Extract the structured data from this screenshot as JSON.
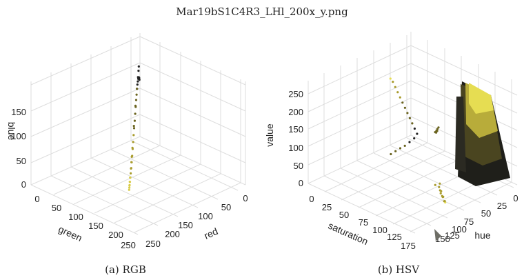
{
  "figure": {
    "title": "Mar19bS1C4R3_LHl_200x_y.png"
  },
  "chart_data": [
    {
      "type": "scatter",
      "projection": "3d",
      "caption": "(a) RGB",
      "xlabel": "red",
      "ylabel": "green",
      "zlabel": "blue",
      "xlim": [
        0,
        255
      ],
      "ylim": [
        0,
        255
      ],
      "zlim": [
        0,
        190
      ],
      "xticks": [
        "0",
        "50",
        "100",
        "150",
        "200",
        "250"
      ],
      "yticks": [
        "0",
        "50",
        "100",
        "150",
        "200",
        "250"
      ],
      "zticks": [
        "0",
        "50",
        "100",
        "150"
      ],
      "grid": true,
      "points": [
        [
          10,
          12,
          110
        ],
        [
          14,
          16,
          115
        ],
        [
          18,
          20,
          118
        ],
        [
          22,
          24,
          120
        ],
        [
          28,
          30,
          122
        ],
        [
          34,
          36,
          123
        ],
        [
          40,
          44,
          122
        ],
        [
          48,
          52,
          120
        ],
        [
          56,
          60,
          116
        ],
        [
          64,
          70,
          110
        ],
        [
          72,
          78,
          104
        ],
        [
          82,
          88,
          96
        ],
        [
          92,
          98,
          88
        ],
        [
          102,
          108,
          80
        ],
        [
          112,
          120,
          72
        ],
        [
          122,
          130,
          64
        ],
        [
          132,
          140,
          56
        ],
        [
          142,
          150,
          48
        ],
        [
          152,
          160,
          40
        ],
        [
          162,
          170,
          33
        ],
        [
          172,
          180,
          27
        ],
        [
          182,
          190,
          22
        ],
        [
          192,
          198,
          18
        ],
        [
          200,
          206,
          14
        ],
        [
          208,
          212,
          11
        ],
        [
          214,
          218,
          9
        ],
        [
          220,
          222,
          7
        ],
        [
          26,
          30,
          135
        ],
        [
          20,
          24,
          140
        ],
        [
          34,
          40,
          128
        ],
        [
          60,
          64,
          118
        ],
        [
          88,
          92,
          100
        ],
        [
          118,
          124,
          78
        ],
        [
          148,
          154,
          52
        ],
        [
          178,
          184,
          28
        ],
        [
          196,
          202,
          20
        ],
        [
          170,
          176,
          36
        ],
        [
          160,
          168,
          42
        ],
        [
          206,
          210,
          16
        ],
        [
          212,
          216,
          12
        ]
      ],
      "colors": [
        "#222222",
        "#6b6420",
        "#a99c2e",
        "#d9cc48"
      ]
    },
    {
      "type": "scatter",
      "projection": "3d",
      "caption": "(b) HSV",
      "xlabel": "hue",
      "ylabel": "saturation",
      "zlabel": "value",
      "xlim": [
        0,
        185
      ],
      "ylim": [
        0,
        185
      ],
      "zlim": [
        0,
        260
      ],
      "xticks": [
        "0",
        "25",
        "50",
        "75",
        "100",
        "125",
        "150"
      ],
      "yticks": [
        "0",
        "25",
        "50",
        "75",
        "100",
        "125",
        "150",
        "175"
      ],
      "zticks": [
        "0",
        "50",
        "100",
        "150",
        "200",
        "250"
      ],
      "grid": true,
      "points": [
        [
          30,
          30,
          40
        ],
        [
          32,
          40,
          60
        ],
        [
          34,
          50,
          80
        ],
        [
          36,
          60,
          100
        ],
        [
          38,
          70,
          120
        ],
        [
          40,
          80,
          140
        ],
        [
          42,
          90,
          160
        ],
        [
          44,
          100,
          180
        ],
        [
          46,
          110,
          200
        ],
        [
          48,
          120,
          220
        ],
        [
          50,
          130,
          240
        ],
        [
          52,
          140,
          255
        ],
        [
          28,
          35,
          30
        ],
        [
          26,
          45,
          25
        ],
        [
          24,
          55,
          20
        ],
        [
          22,
          65,
          18
        ],
        [
          20,
          75,
          15
        ],
        [
          18,
          85,
          12
        ],
        [
          120,
          110,
          10
        ],
        [
          125,
          115,
          8
        ],
        [
          130,
          120,
          12
        ],
        [
          135,
          125,
          6
        ],
        [
          140,
          130,
          10
        ],
        [
          145,
          135,
          5
        ],
        [
          150,
          140,
          8
        ],
        [
          110,
          105,
          6
        ],
        [
          115,
          100,
          10
        ],
        [
          128,
          118,
          4
        ],
        [
          138,
          128,
          7
        ],
        [
          148,
          138,
          9
        ],
        [
          90,
          70,
          110
        ],
        [
          95,
          75,
          120
        ],
        [
          100,
          80,
          130
        ],
        [
          85,
          60,
          100
        ],
        [
          80,
          55,
          90
        ],
        [
          75,
          50,
          85
        ]
      ],
      "colors": [
        "#222222",
        "#6b6420",
        "#a99c2e",
        "#e6dd52"
      ]
    }
  ]
}
